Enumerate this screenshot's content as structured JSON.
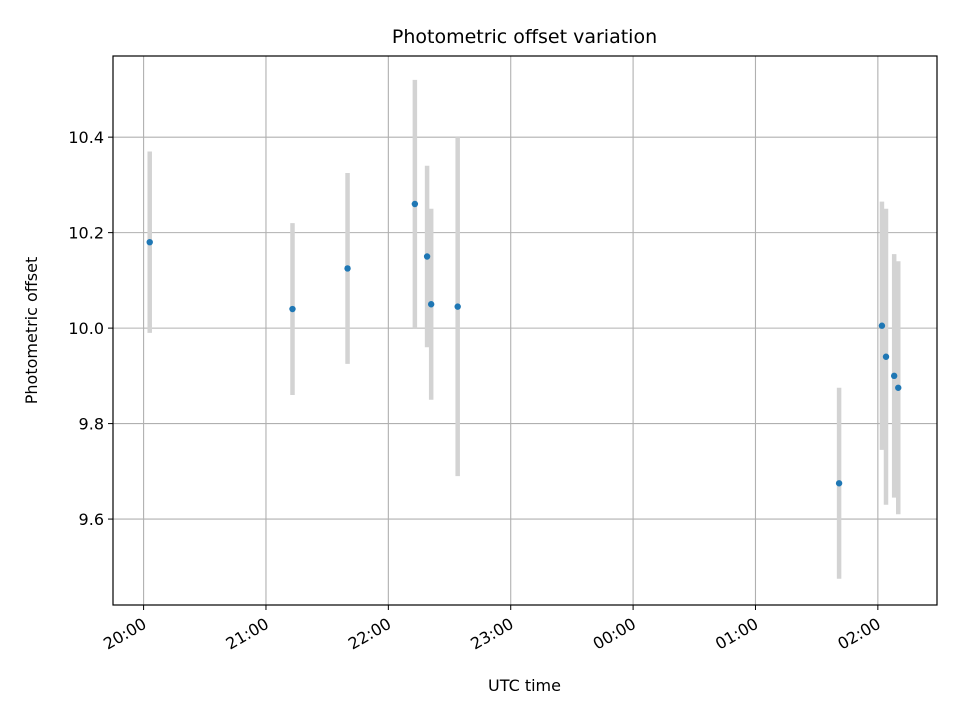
{
  "chart_data": {
    "type": "scatter",
    "title": "Photometric offset variation",
    "xlabel": "UTC time",
    "ylabel": "Photometric offset",
    "x_tick_labels": [
      "20:00",
      "21:00",
      "22:00",
      "23:00",
      "00:00",
      "01:00",
      "02:00"
    ],
    "x_ticks_hours": [
      20,
      21,
      22,
      23,
      24,
      25,
      26
    ],
    "y_ticks": [
      9.6,
      9.8,
      10.0,
      10.2,
      10.4
    ],
    "y_tick_labels": [
      "9.6",
      "9.8",
      "10.0",
      "10.2",
      "10.4"
    ],
    "xlim": [
      "19:45",
      "02:29"
    ],
    "ylim": [
      9.42,
      10.57
    ],
    "grid": true,
    "marker_color": "#1f77b4",
    "errorbar_color": "#d3d3d3",
    "points": [
      {
        "time": "20:03",
        "y": 10.18,
        "err": 0.19
      },
      {
        "time": "21:13",
        "y": 10.04,
        "err": 0.18
      },
      {
        "time": "21:40",
        "y": 10.125,
        "err": 0.2
      },
      {
        "time": "22:13",
        "y": 10.26,
        "err": 0.26
      },
      {
        "time": "22:19",
        "y": 10.15,
        "err": 0.19
      },
      {
        "time": "22:21",
        "y": 10.05,
        "err": 0.2
      },
      {
        "time": "22:34",
        "y": 10.045,
        "err": 0.355
      },
      {
        "time": "01:41",
        "y": 9.675,
        "err": 0.2
      },
      {
        "time": "02:02",
        "y": 10.005,
        "err": 0.26
      },
      {
        "time": "02:04",
        "y": 9.94,
        "err": 0.31
      },
      {
        "time": "02:08",
        "y": 9.9,
        "err": 0.255
      },
      {
        "time": "02:10",
        "y": 9.875,
        "err": 0.265
      }
    ]
  }
}
